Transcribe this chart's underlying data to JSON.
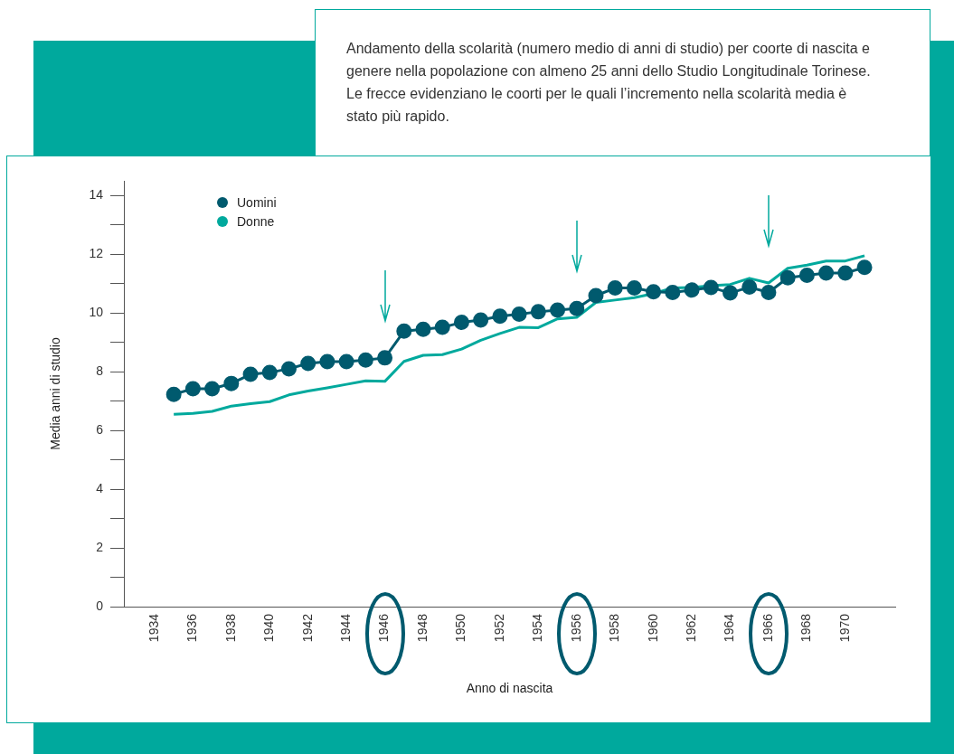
{
  "chart_data": {
    "type": "line",
    "xlabel": "Anno di nascita",
    "ylabel": "Media anni di studio",
    "annotations": [
      "Andamento della scolarità (numero medio di anni di studio) per coorte di nascita e genere nella popolazione con almeno 25 anni dello Studio Longitudinale Torinese. Le frecce evidenziano le coorti per le quali l’incremento nella scolarità media è stato più rapido."
    ],
    "x": [
      1935,
      1936,
      1937,
      1938,
      1939,
      1940,
      1941,
      1942,
      1943,
      1944,
      1945,
      1946,
      1947,
      1948,
      1949,
      1950,
      1951,
      1952,
      1953,
      1954,
      1955,
      1956,
      1957,
      1958,
      1959,
      1960,
      1961,
      1962,
      1963,
      1964,
      1965,
      1966,
      1967,
      1968,
      1969,
      1970,
      1971
    ],
    "series": [
      {
        "name": "Uomini",
        "color": "#005a6e",
        "marker": "circle",
        "values": [
          7.23,
          7.42,
          7.42,
          7.6,
          7.91,
          7.97,
          8.1,
          8.28,
          8.34,
          8.34,
          8.4,
          8.47,
          9.38,
          9.44,
          9.51,
          9.68,
          9.76,
          9.89,
          9.96,
          10.04,
          10.1,
          10.15,
          10.59,
          10.85,
          10.85,
          10.72,
          10.7,
          10.78,
          10.87,
          10.68,
          10.88,
          10.7,
          11.2,
          11.28,
          11.36,
          11.36,
          11.55
        ]
      },
      {
        "name": "Donne",
        "color": "#00a99d",
        "marker": "none",
        "values": [
          6.55,
          6.58,
          6.65,
          6.83,
          6.91,
          6.98,
          7.21,
          7.34,
          7.45,
          7.57,
          7.69,
          7.67,
          8.35,
          8.56,
          8.58,
          8.77,
          9.07,
          9.3,
          9.51,
          9.5,
          9.8,
          9.85,
          10.36,
          10.44,
          10.52,
          10.66,
          10.85,
          10.87,
          10.93,
          10.97,
          11.18,
          11.02,
          11.52,
          11.63,
          11.77,
          11.77,
          11.95
        ]
      }
    ],
    "xlim": [
      1932.4,
      1972.6
    ],
    "xticks": [
      1934,
      1936,
      1938,
      1940,
      1942,
      1944,
      1946,
      1948,
      1950,
      1952,
      1954,
      1956,
      1958,
      1960,
      1962,
      1964,
      1966,
      1968,
      1970
    ],
    "ylim": [
      0,
      14.5
    ],
    "yticks": [
      0,
      {
        "value": 1,
        "label": null
      },
      2,
      {
        "value": 3,
        "label": null
      },
      4,
      {
        "value": 5,
        "label": null
      },
      6,
      {
        "value": 7,
        "label": null
      },
      8,
      {
        "value": 9,
        "label": null
      },
      10,
      {
        "value": 11,
        "label": null
      },
      12,
      {
        "value": 13,
        "label": null
      },
      14
    ],
    "grid": false,
    "legend": "top left",
    "line_style": "solid"
  }
}
